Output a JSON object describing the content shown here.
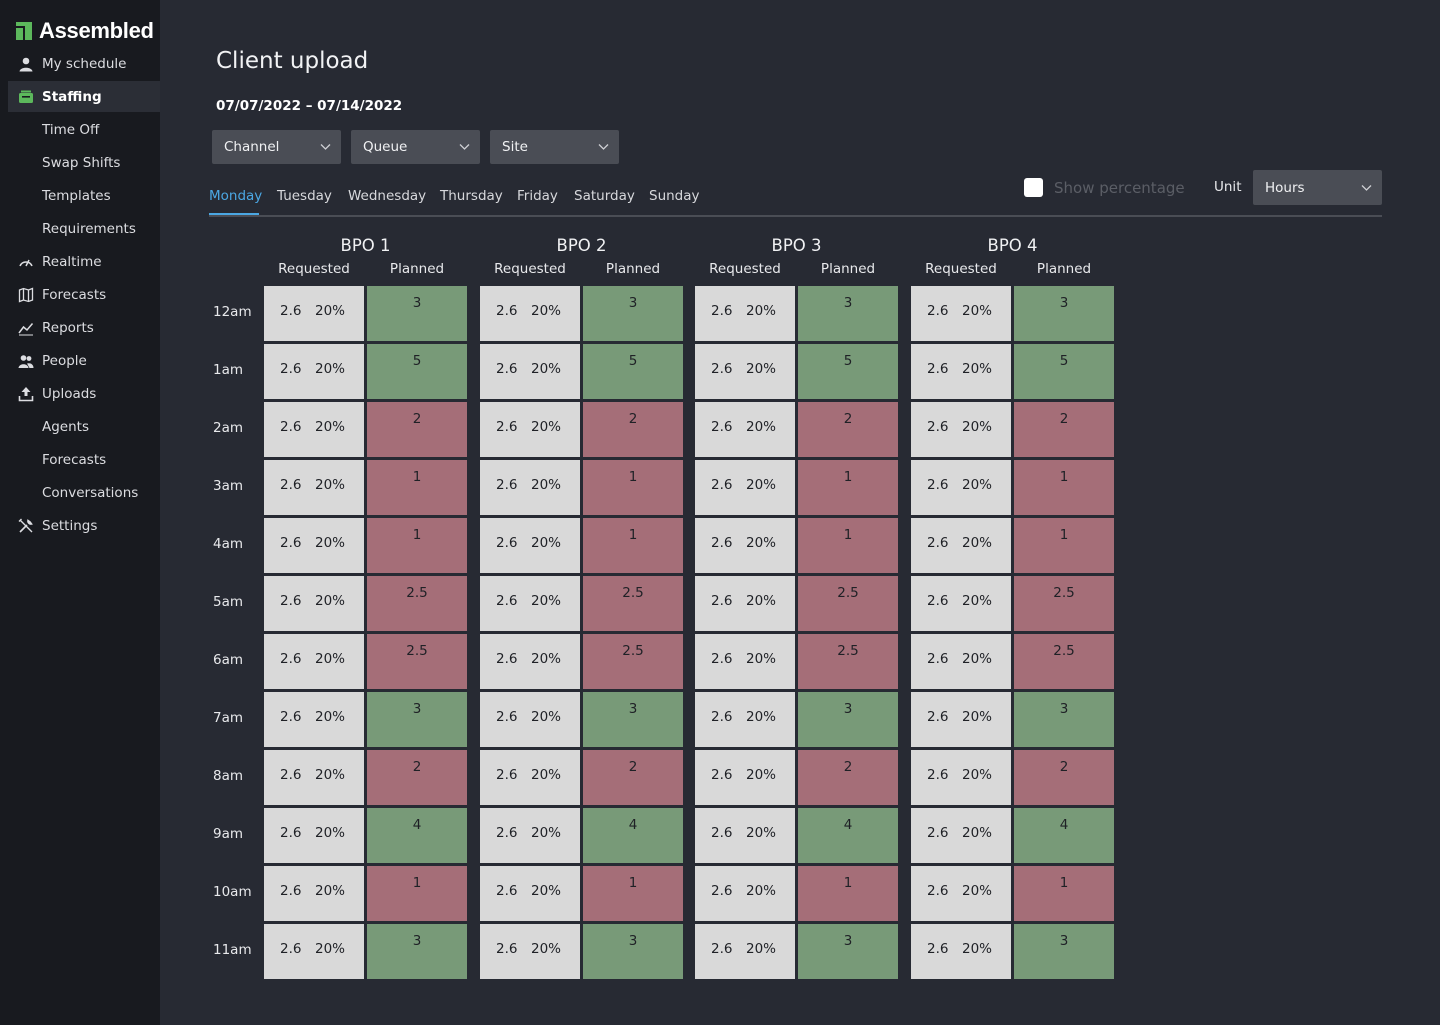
{
  "app": {
    "logo_text": "Assembled",
    "brand_color": "#5cb85c"
  },
  "sidebar": {
    "items": [
      {
        "label": "My schedule",
        "icon": "user-icon"
      },
      {
        "label": "Staffing",
        "icon": "staffing-icon",
        "active": true
      },
      {
        "label": "Time Off",
        "sub": true
      },
      {
        "label": "Swap Shifts",
        "sub": true
      },
      {
        "label": "Templates",
        "sub": true
      },
      {
        "label": "Requirements",
        "sub": true
      },
      {
        "label": "Realtime",
        "icon": "gauge-icon"
      },
      {
        "label": "Forecasts",
        "icon": "map-icon"
      },
      {
        "label": "Reports",
        "icon": "trend-icon"
      },
      {
        "label": "People",
        "icon": "people-icon"
      },
      {
        "label": "Uploads",
        "icon": "upload-icon"
      },
      {
        "label": "Agents",
        "sub": true
      },
      {
        "label": "Forecasts",
        "sub": true
      },
      {
        "label": "Conversations",
        "sub": true
      },
      {
        "label": "Settings",
        "icon": "tools-icon"
      }
    ]
  },
  "page": {
    "title": "Client upload",
    "date_range": "07/07/2022 – 07/14/2022"
  },
  "filters": {
    "channel": "Channel",
    "queue": "Queue",
    "site": "Site"
  },
  "tabs": [
    "Monday",
    "Tuesday",
    "Wednesday",
    "Thursday",
    "Friday",
    "Saturday",
    "Sunday"
  ],
  "active_tab": "Monday",
  "controls": {
    "show_percentage_label": "Show percentage",
    "show_percentage_checked": false,
    "unit_label": "Unit",
    "unit_value": "Hours"
  },
  "table": {
    "bpos": [
      "BPO 1",
      "BPO 2",
      "BPO 3",
      "BPO 4"
    ],
    "requested_header": "Requested",
    "planned_header": "Planned",
    "hours": [
      "12am",
      "1am",
      "2am",
      "3am",
      "4am",
      "5am",
      "6am",
      "7am",
      "8am",
      "9am",
      "10am",
      "11am"
    ],
    "requested_value": "2.6",
    "requested_pct": "20%",
    "planned": [
      "3",
      "5",
      "2",
      "1",
      "1",
      "2.5",
      "2.5",
      "3",
      "2",
      "4",
      "1",
      "3"
    ],
    "planned_status": [
      "ok",
      "ok",
      "low",
      "low",
      "low",
      "low",
      "low",
      "ok",
      "low",
      "ok",
      "low",
      "ok"
    ],
    "status_colors": {
      "ok": "#789a78",
      "low": "#a56e78"
    }
  }
}
